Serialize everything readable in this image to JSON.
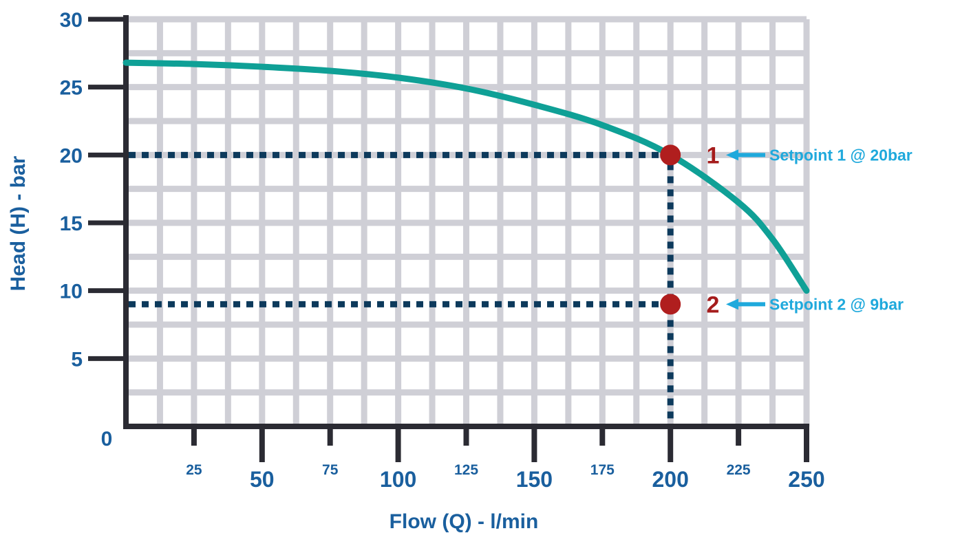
{
  "chart_data": {
    "type": "line",
    "xlabel": "Flow (Q) - l/min",
    "ylabel": "Head (H) - bar",
    "xlim": [
      0,
      250
    ],
    "ylim": [
      0,
      30
    ],
    "grid": true,
    "y_ticks": [
      {
        "value": 0,
        "label": "0"
      },
      {
        "value": 5,
        "label": "5"
      },
      {
        "value": 10,
        "label": "10"
      },
      {
        "value": 15,
        "label": "15"
      },
      {
        "value": 20,
        "label": "20"
      },
      {
        "value": 25,
        "label": "25"
      },
      {
        "value": 30,
        "label": "30"
      }
    ],
    "x_ticks": [
      {
        "value": 25,
        "label": "25",
        "major": false
      },
      {
        "value": 50,
        "label": "50",
        "major": true
      },
      {
        "value": 75,
        "label": "75",
        "major": false
      },
      {
        "value": 100,
        "label": "100",
        "major": true
      },
      {
        "value": 125,
        "label": "125",
        "major": false
      },
      {
        "value": 150,
        "label": "150",
        "major": true
      },
      {
        "value": 175,
        "label": "175",
        "major": false
      },
      {
        "value": 200,
        "label": "200",
        "major": true
      },
      {
        "value": 225,
        "label": "225",
        "major": false
      },
      {
        "value": 250,
        "label": "250",
        "major": true
      }
    ],
    "series": [
      {
        "color": "#0fa096",
        "x": [
          0,
          25,
          50,
          75,
          100,
          125,
          150,
          175,
          200,
          225,
          237.5,
          250
        ],
        "y": [
          26.8,
          26.7,
          26.5,
          26.2,
          25.7,
          24.9,
          23.7,
          22.2,
          20.0,
          16.5,
          13.8,
          10.0
        ]
      }
    ],
    "setpoints": [
      {
        "number": "1",
        "x": 200,
        "y": 20,
        "label": "Setpoint 1 @ 20bar"
      },
      {
        "number": "2",
        "x": 200,
        "y": 9,
        "label": "Setpoint 2 @ 9bar"
      }
    ],
    "colors": {
      "grid": "#cfcfd6",
      "axis": "#2b2b33",
      "tick_text": "#1a5f9e",
      "guide": "#0d3a5c",
      "point": "#b01e1e",
      "number": "#a51c1c",
      "annotation": "#1fa9dc"
    }
  }
}
